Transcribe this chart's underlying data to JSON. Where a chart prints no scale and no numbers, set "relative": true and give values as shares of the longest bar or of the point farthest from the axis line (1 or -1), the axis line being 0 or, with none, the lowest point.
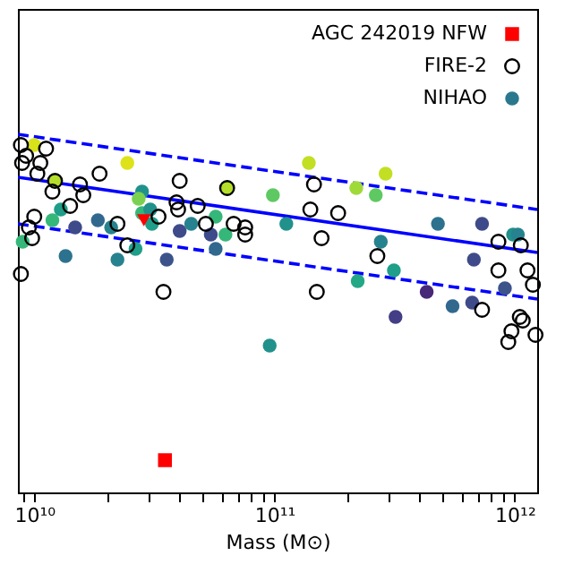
{
  "chart_data": {
    "type": "scatter",
    "relative": true,
    "xlabel": "Mass (M⊙)",
    "log": "x",
    "grid": false,
    "legend": "top right",
    "xlim": [
      8550000000.0,
      1240000000000.0
    ],
    "xticks": [
      {
        "value": 9000000000.0,
        "label": null
      },
      {
        "value": 10000000000.0,
        "label": "10¹⁰"
      },
      {
        "value": 20000000000.0,
        "label": null
      },
      {
        "value": 30000000000.0,
        "label": null
      },
      {
        "value": 40000000000.0,
        "label": null
      },
      {
        "value": 50000000000.0,
        "label": null
      },
      {
        "value": 60000000000.0,
        "label": null
      },
      {
        "value": 70000000000.0,
        "label": null
      },
      {
        "value": 80000000000.0,
        "label": null
      },
      {
        "value": 90000000000.0,
        "label": null
      },
      {
        "value": 100000000000.0,
        "label": "10¹¹"
      },
      {
        "value": 200000000000.0,
        "label": null
      },
      {
        "value": 300000000000.0,
        "label": null
      },
      {
        "value": 400000000000.0,
        "label": null
      },
      {
        "value": 500000000000.0,
        "label": null
      },
      {
        "value": 600000000000.0,
        "label": null
      },
      {
        "value": 700000000000.0,
        "label": null
      },
      {
        "value": 800000000000.0,
        "label": null
      },
      {
        "value": 900000000000.0,
        "label": null
      },
      {
        "value": 1000000000000.0,
        "label": "10¹²"
      }
    ],
    "series": [
      {
        "type": "line",
        "color": "#0000ff",
        "line_style": "solid",
        "x": [
          8550000000.0,
          1240000000000.0
        ],
        "values": [
          0.88,
          0.67
        ]
      },
      {
        "type": "line",
        "color": "#0000ff",
        "line_style": "dashed",
        "x": [
          8550000000.0,
          1240000000000.0
        ],
        "values": [
          1.0,
          0.79
        ]
      },
      {
        "type": "line",
        "color": "#0000ff",
        "line_style": "dashed",
        "x": [
          8550000000.0,
          1240000000000.0
        ],
        "values": [
          0.75,
          0.54
        ]
      },
      {
        "name": "NIHAO",
        "marker": "circle",
        "color": "#2a788e",
        "x": [
          10000000000.0,
          24400000000.0,
          12200000000.0,
          28100000000.0,
          27200000000.0,
          63500000000.0,
          98500000000.0,
          12900000000.0,
          11900000000.0,
          14800000000.0,
          18400000000.0,
          20900000000.0,
          28100000000.0,
          30900000000.0,
          30400000000.0,
          8950000000.0,
          13500000000.0,
          22200000000.0,
          26400000000.0,
          35600000000.0,
          40300000000.0,
          45000000000.0,
          56900000000.0,
          54300000000.0,
          56900000000.0,
          62500000000.0,
          95500000000.0,
          139000000000.0,
          219000000000.0,
          264000000000.0,
          290000000000.0,
          112000000000.0,
          277000000000.0,
          314000000000.0,
          222000000000.0,
          319000000000.0,
          430000000000.0,
          479000000000.0,
          551000000000.0,
          665000000000.0,
          731000000000.0,
          676000000000.0,
          984000000000.0,
          1030000000000.0,
          910000000000.0
        ],
        "values": [
          0.97,
          0.92,
          0.87,
          0.84,
          0.82,
          0.85,
          0.83,
          0.79,
          0.76,
          0.74,
          0.76,
          0.74,
          0.78,
          0.75,
          0.79,
          0.7,
          0.66,
          0.65,
          0.68,
          0.65,
          0.73,
          0.75,
          0.77,
          0.72,
          0.68,
          0.72,
          0.41,
          0.92,
          0.85,
          0.83,
          0.89,
          0.75,
          0.7,
          0.62,
          0.59,
          0.49,
          0.56,
          0.75,
          0.52,
          0.53,
          0.75,
          0.65,
          0.72,
          0.72,
          0.57
        ],
        "colors": [
          "#d8e219",
          "#dde318",
          "#b5de2b",
          "#21918c",
          "#7ad151",
          "#b5de2b",
          "#5ec962",
          "#1f9e89",
          "#35b779",
          "#3e4a89",
          "#31688e",
          "#26828e",
          "#35b779",
          "#1f9e89",
          "#21918c",
          "#35b779",
          "#2c728e",
          "#26828e",
          "#1f9e89",
          "#3b528b",
          "#3e4a89",
          "#26828e",
          "#35b779",
          "#3e4a89",
          "#31688e",
          "#35b779",
          "#21918c",
          "#c2df23",
          "#a0da39",
          "#5ec962",
          "#c2df23",
          "#21918c",
          "#26828e",
          "#1f9e89",
          "#22a884",
          "#433e85",
          "#482878",
          "#2c728e",
          "#31688e",
          "#3e4a89",
          "#3e4a89",
          "#3e4a89",
          "#21918c",
          "#26828e",
          "#3b528b"
        ]
      },
      {
        "name": "FIRE-2",
        "marker": "circle",
        "color": "#000000",
        "x": [
          8800000000.0,
          9250000000.0,
          8900000000.0,
          11200000000.0,
          10600000000.0,
          10300000000.0,
          12200000000.0,
          11900000000.0,
          15500000000.0,
          16000000000.0,
          18700000000.0,
          14100000000.0,
          10000000000.0,
          9500000000.0,
          9800000000.0,
          8800000000.0,
          22200000000.0,
          24400000000.0,
          32900000000.0,
          34500000000.0,
          40300000000.0,
          39100000000.0,
          39700000000.0,
          47900000000.0,
          51800000000.0,
          67600000000.0,
          75500000000.0,
          75500000000.0,
          63500000000.0,
          146000000000.0,
          141000000000.0,
          184000000000.0,
          157000000000.0,
          150000000000.0,
          268000000000.0,
          855000000000.0,
          1060000000000.0,
          855000000000.0,
          1130000000000.0,
          1190000000000.0,
          731000000000.0,
          1050000000000.0,
          1080000000000.0,
          969000000000.0,
          940000000000.0,
          1220000000000.0
        ],
        "values": [
          0.97,
          0.94,
          0.92,
          0.96,
          0.92,
          0.89,
          0.87,
          0.84,
          0.86,
          0.83,
          0.89,
          0.8,
          0.77,
          0.74,
          0.71,
          0.61,
          0.75,
          0.69,
          0.77,
          0.56,
          0.87,
          0.81,
          0.79,
          0.8,
          0.75,
          0.75,
          0.74,
          0.72,
          0.85,
          0.86,
          0.79,
          0.78,
          0.71,
          0.56,
          0.66,
          0.7,
          0.69,
          0.62,
          0.62,
          0.58,
          0.51,
          0.49,
          0.48,
          0.45,
          0.42,
          0.44
        ]
      },
      {
        "marker": "triangle",
        "color": "#ff0000",
        "x": [
          28600000000.0
        ],
        "values": [
          0.76
        ]
      },
      {
        "name": "AGC 242019 NFW",
        "marker": "square",
        "color": "#ff0000",
        "x": [
          35000000000.0
        ],
        "values": [
          0.09
        ]
      }
    ]
  }
}
